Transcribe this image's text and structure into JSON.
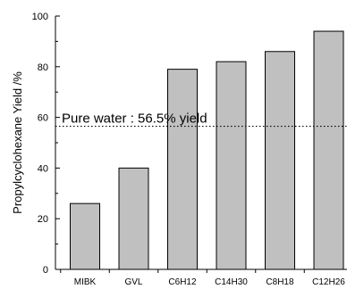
{
  "chart_data": {
    "type": "bar",
    "categories": [
      "MIBK",
      "GVL",
      "C6H12",
      "C14H30",
      "C8H18",
      "C12H26"
    ],
    "values": [
      26,
      40,
      79,
      82,
      86,
      94
    ],
    "title": "",
    "xlabel": "",
    "ylabel": "Propylcyclohexane Yield /%",
    "ylim": [
      0,
      100
    ],
    "yticks": [
      0,
      20,
      40,
      60,
      80,
      100
    ],
    "grid": false,
    "bar_color": "#c0c0c0",
    "bar_edge_color": "#000000",
    "reference_line": {
      "value": 56.5,
      "label": "Pure water : 56.5% yield",
      "style": "dotted"
    }
  }
}
